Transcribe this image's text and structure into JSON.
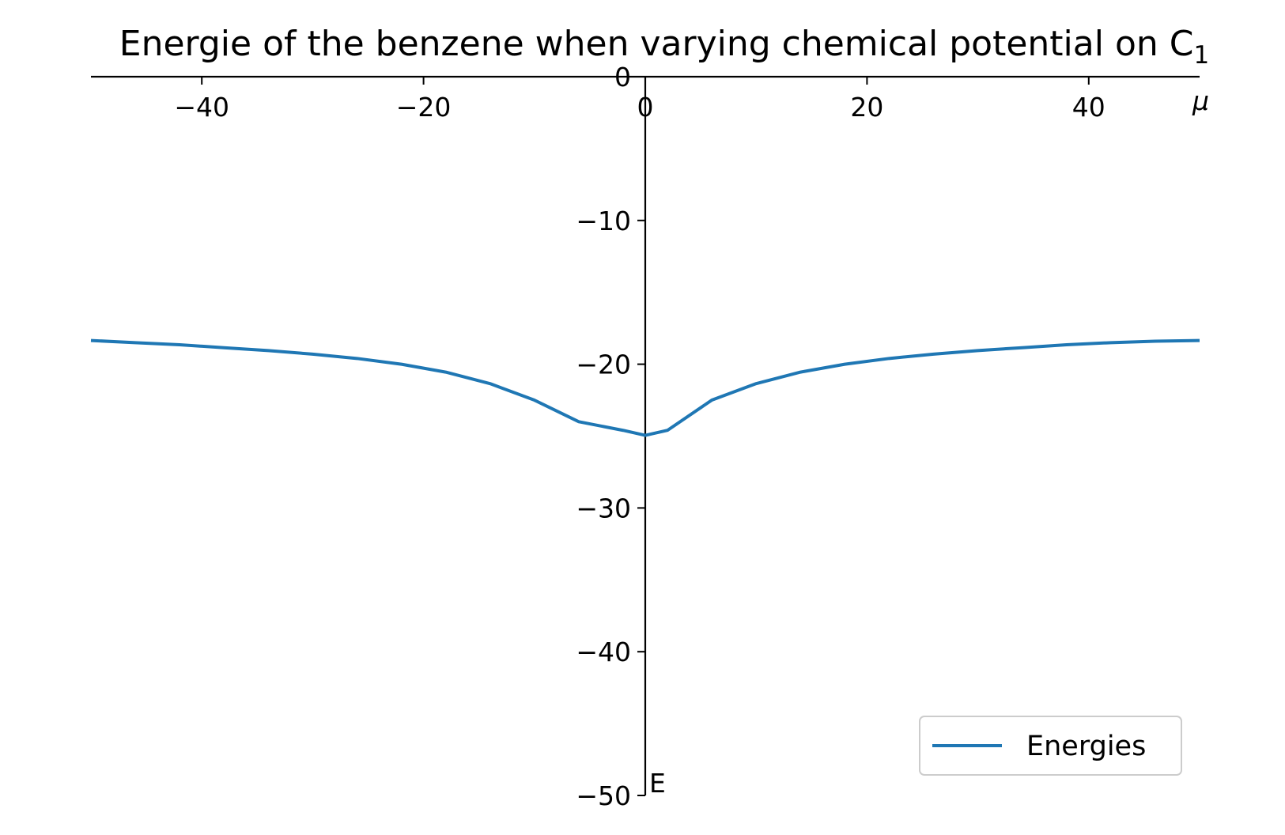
{
  "chart_data": {
    "type": "line",
    "title": "Energie of the benzene when varying chemical potential on C",
    "title_subscript": "1",
    "xlabel": "μ",
    "ylabel": "E",
    "xlim": [
      -50,
      50
    ],
    "ylim": [
      -50,
      0
    ],
    "xticks": [
      -40,
      -20,
      0,
      20,
      40
    ],
    "yticks": [
      0,
      -10,
      -20,
      -30,
      -40,
      -50
    ],
    "xtick_labels": [
      "−40",
      "−20",
      "0",
      "20",
      "40"
    ],
    "ytick_labels": [
      "0",
      "−10",
      "−20",
      "−30",
      "−40",
      "−50"
    ],
    "spines": "centered",
    "grid": false,
    "legend_position": "bottom-right",
    "series": [
      {
        "name": "Energies",
        "color": "#1f77b4",
        "x": [
          -50,
          -46,
          -42,
          -38,
          -34,
          -30,
          -26,
          -22,
          -18,
          -14,
          -10,
          -6,
          -2,
          0,
          2,
          6,
          10,
          14,
          18,
          22,
          26,
          30,
          34,
          38,
          42,
          46,
          50
        ],
        "y": [
          -18.35,
          -18.5,
          -18.65,
          -18.85,
          -19.05,
          -19.3,
          -19.6,
          -20.0,
          -20.55,
          -21.35,
          -22.5,
          -24.0,
          -24.6,
          -24.95,
          -24.6,
          -22.5,
          -21.35,
          -20.55,
          -20.0,
          -19.6,
          -19.3,
          -19.05,
          -18.85,
          -18.65,
          -18.5,
          -18.4,
          -18.35
        ]
      }
    ]
  }
}
